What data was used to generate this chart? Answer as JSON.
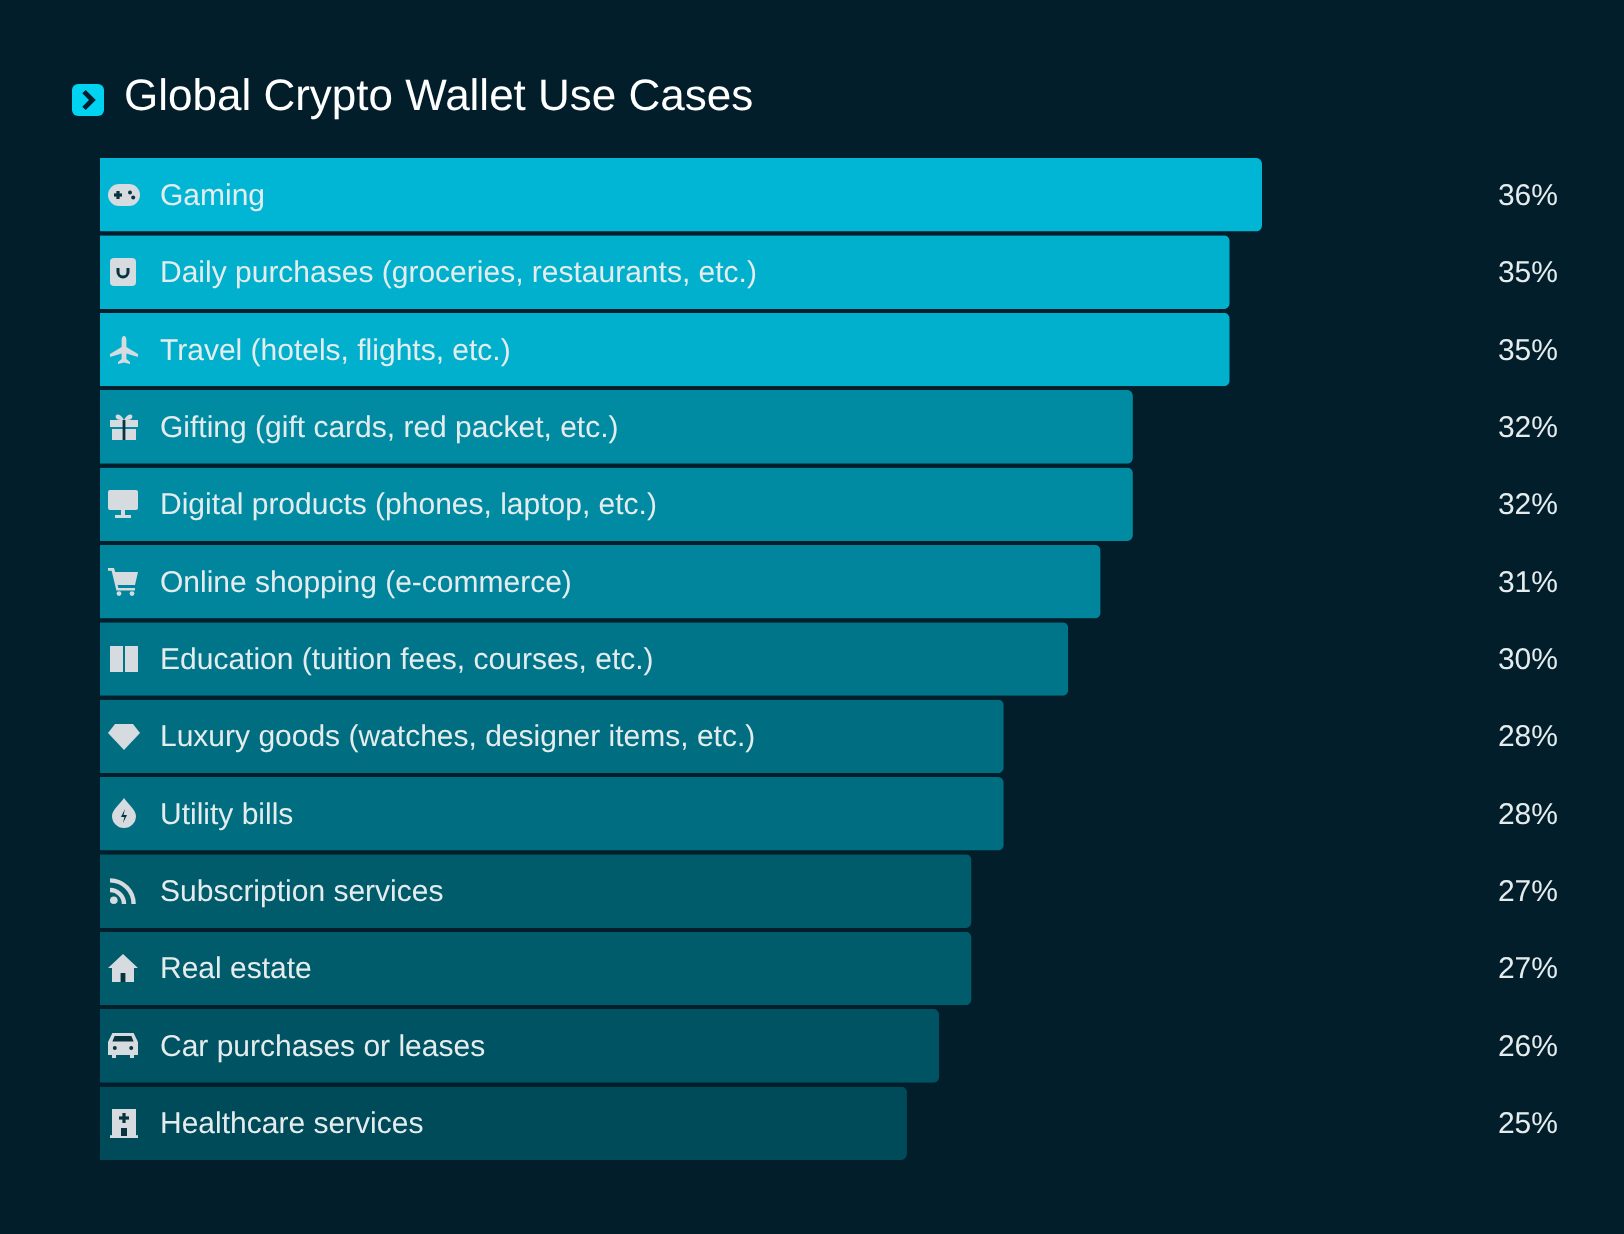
{
  "chart_data": {
    "type": "bar",
    "orientation": "horizontal",
    "title": "Global Crypto Wallet Use Cases",
    "categories": [
      "Gaming",
      "Daily purchases (groceries, restaurants, etc.)",
      "Travel (hotels, flights, etc.)",
      "Gifting (gift cards, red packet, etc.)",
      "Digital products (phones, laptop, etc.)",
      "Online shopping (e-commerce)",
      "Education (tuition fees, courses, etc.)",
      "Luxury goods (watches, designer items, etc.)",
      "Utility bills",
      "Subscription services",
      "Real estate",
      "Car purchases or leases",
      "Healthcare services"
    ],
    "values": [
      36,
      35,
      35,
      32,
      32,
      31,
      30,
      28,
      28,
      27,
      27,
      26,
      25
    ],
    "colors": [
      "#00b6d4",
      "#00b0cd",
      "#00b0cd",
      "#008ba3",
      "#008ba3",
      "#00859c",
      "#00758a",
      "#006d80",
      "#006d80",
      "#005b6b",
      "#005b6b",
      "#005362",
      "#004b59"
    ],
    "value_labels": [
      "36%",
      "35%",
      "35%",
      "32%",
      "32%",
      "31%",
      "30%",
      "28%",
      "28%",
      "27%",
      "27%",
      "26%",
      "25%"
    ],
    "tick_labels": "y"
  }
}
